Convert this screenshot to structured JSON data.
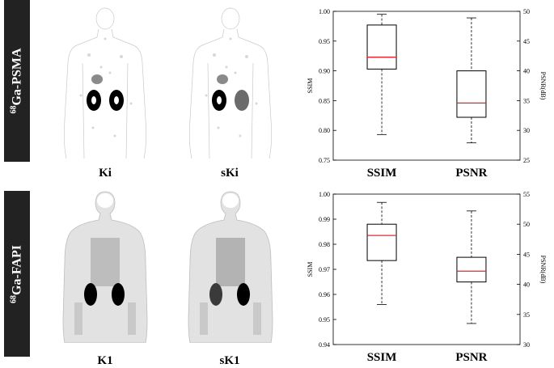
{
  "rows": [
    {
      "tracer": {
        "superscript": "68",
        "name": "Ga-PSMA"
      },
      "images": [
        {
          "label": "Ki"
        },
        {
          "label": "sKi"
        }
      ]
    },
    {
      "tracer": {
        "superscript": "68",
        "name": "Ga-FAPI"
      },
      "images": [
        {
          "label": "K1"
        },
        {
          "label": "sK1"
        }
      ]
    }
  ],
  "chart_data": [
    {
      "type": "box",
      "categories": [
        "SSIM",
        "PSNR"
      ],
      "ylabel": "SSIM",
      "y2label": "PSNR(dB)",
      "ylim": [
        0.75,
        1.0
      ],
      "yticks": [
        "0.75",
        "0.80",
        "0.85",
        "0.90",
        "0.95",
        "1.00"
      ],
      "y2lim": [
        25,
        50
      ],
      "y2ticks": [
        "25",
        "30",
        "35",
        "40",
        "45",
        "50"
      ],
      "boxes": [
        {
          "name": "SSIM",
          "axis": "left",
          "min": 0.793,
          "q1": 0.903,
          "median": 0.923,
          "q3": 0.977,
          "max": 0.995
        },
        {
          "name": "PSNR",
          "axis": "right",
          "min": 27.9,
          "q1": 32.2,
          "median": 34.6,
          "q3": 40.0,
          "max": 48.9
        }
      ],
      "colors": {
        "median": "#e8232a",
        "box": "#000000"
      }
    },
    {
      "type": "box",
      "categories": [
        "SSIM",
        "PSNR"
      ],
      "ylabel": "SSIM",
      "y2label": "PSNR(dB)",
      "ylim": [
        0.94,
        1.0
      ],
      "yticks": [
        "0.94",
        "0.95",
        "0.96",
        "0.97",
        "0.98",
        "0.99",
        "1.00"
      ],
      "y2lim": [
        30,
        55
      ],
      "y2ticks": [
        "30",
        "35",
        "40",
        "45",
        "50",
        "55"
      ],
      "boxes": [
        {
          "name": "SSIM",
          "axis": "left",
          "min": 0.956,
          "q1": 0.9735,
          "median": 0.9835,
          "q3": 0.988,
          "max": 0.9967
        },
        {
          "name": "PSNR",
          "axis": "right",
          "min": 33.5,
          "q1": 40.4,
          "median": 42.2,
          "q3": 44.5,
          "max": 52.2
        }
      ],
      "colors": {
        "median": "#e8232a",
        "box": "#000000"
      }
    }
  ]
}
